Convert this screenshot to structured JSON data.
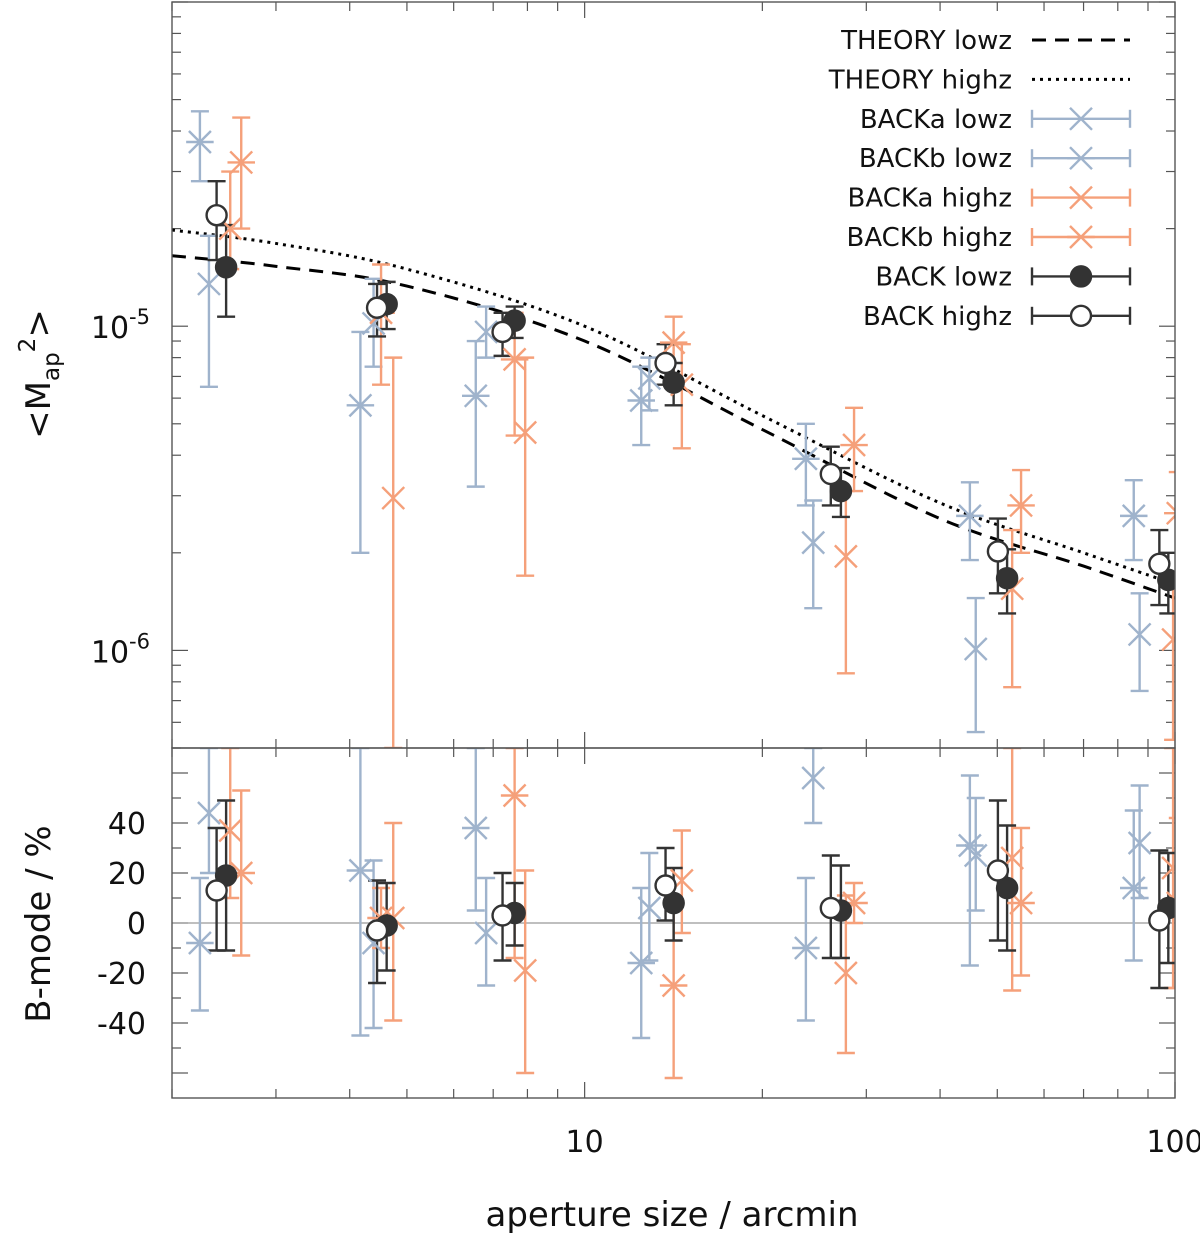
{
  "chart_data": [
    {
      "type": "scatter",
      "panel": "top",
      "title": "",
      "xlabel": "aperture size / arcmin",
      "ylabel_parts": [
        "<M",
        "ap",
        "2",
        ">"
      ],
      "xscale": "log",
      "yscale": "log",
      "xlim": [
        2,
        100
      ],
      "ylim": [
        5e-07,
        0.0001
      ],
      "yticks": [
        {
          "value": 1e-05,
          "mantissa": "10",
          "exponent": "-5"
        },
        {
          "value": 1e-06,
          "mantissa": "10",
          "exponent": "-6"
        }
      ],
      "legend_position": "top-right",
      "lines": [
        {
          "name": "THEORY lowz",
          "style": "dashed",
          "color": "#000000",
          "x": [
            2,
            3,
            5,
            10,
            20,
            40,
            70,
            100
          ],
          "y": [
            1.65e-05,
            1.53e-05,
            1.33e-05,
            9e-06,
            4.8e-06,
            2.55e-06,
            1.82e-06,
            1.45e-06
          ]
        },
        {
          "name": "THEORY highz",
          "style": "dotted",
          "color": "#000000",
          "x": [
            2,
            3,
            5,
            10,
            20,
            40,
            70,
            100
          ],
          "y": [
            1.98e-05,
            1.8e-05,
            1.5e-05,
            1e-05,
            5.3e-06,
            2.85e-06,
            2e-06,
            1.6e-06
          ]
        }
      ],
      "series": [
        {
          "name": "BACKa lowz",
          "marker": "x",
          "color": "#9fb3cc",
          "points": [
            {
              "x": 2.31,
              "y": 1.35e-05,
              "lo": 6.5e-06,
              "hi": 1.9e-05
            },
            {
              "x": 4.39,
              "y": 1.02e-05,
              "lo": 7.5e-06,
              "hi": 1.4e-05
            },
            {
              "x": 6.81,
              "y": 9.6e-06,
              "lo": 8e-06,
              "hi": 1.15e-05
            },
            {
              "x": 12.87,
              "y": 6.9e-06,
              "lo": 5.5e-06,
              "hi": 8e-06
            },
            {
              "x": 24.39,
              "y": 2.15e-06,
              "lo": 1.35e-06,
              "hi": 2.9e-06
            },
            {
              "x": 45.97,
              "y": 1.01e-06,
              "lo": 5.6e-07,
              "hi": 1.45e-06
            },
            {
              "x": 87.11,
              "y": 1.12e-06,
              "lo": 7.5e-07,
              "hi": 1.5e-06
            }
          ]
        },
        {
          "name": "BACKb lowz",
          "marker": "star",
          "color": "#9fb3cc",
          "points": [
            {
              "x": 2.23,
              "y": 3.7e-05,
              "lo": 2.8e-05,
              "hi": 4.6e-05
            },
            {
              "x": 4.17,
              "y": 5.7e-06,
              "lo": 2e-06,
              "hi": 9.6e-06
            },
            {
              "x": 6.54,
              "y": 6.1e-06,
              "lo": 3.2e-06,
              "hi": 9e-06
            },
            {
              "x": 12.47,
              "y": 5.9e-06,
              "lo": 4.3e-06,
              "hi": 7.5e-06
            },
            {
              "x": 23.7,
              "y": 3.9e-06,
              "lo": 2.8e-06,
              "hi": 5e-06
            },
            {
              "x": 44.93,
              "y": 2.6e-06,
              "lo": 1.9e-06,
              "hi": 3.3e-06
            },
            {
              "x": 85.14,
              "y": 2.6e-06,
              "lo": 1.9e-06,
              "hi": 3.35e-06
            }
          ]
        },
        {
          "name": "BACKa highz",
          "marker": "x",
          "color": "#f5a07a",
          "points": [
            {
              "x": 2.51,
              "y": 2e-05,
              "lo": 1.5e-05,
              "hi": 3e-05
            },
            {
              "x": 4.74,
              "y": 2.95e-06,
              "lo": 3e-07,
              "hi": 8e-06
            },
            {
              "x": 7.93,
              "y": 4.7e-06,
              "lo": 1.7e-06,
              "hi": 8e-06
            },
            {
              "x": 14.61,
              "y": 6.6e-06,
              "lo": 4.2e-06,
              "hi": 8.8e-06
            },
            {
              "x": 27.7,
              "y": 1.95e-06,
              "lo": 8.5e-07,
              "hi": 3.1e-06
            },
            {
              "x": 52.99,
              "y": 1.55e-06,
              "lo": 7.7e-07,
              "hi": 2.35e-06
            },
            {
              "x": 99.26,
              "y": 1.08e-06,
              "lo": 5.3e-07,
              "hi": 1.65e-06
            }
          ]
        },
        {
          "name": "BACKb highz",
          "marker": "star",
          "color": "#f5a07a",
          "points": [
            {
              "x": 2.62,
              "y": 3.2e-05,
              "lo": 2e-05,
              "hi": 4.4e-05
            },
            {
              "x": 4.52,
              "y": 1.1e-05,
              "lo": 6.6e-06,
              "hi": 1.55e-05
            },
            {
              "x": 7.61,
              "y": 7.9e-06,
              "lo": 4.6e-06,
              "hi": 1.1e-05
            },
            {
              "x": 14.15,
              "y": 8.9e-06,
              "lo": 7e-06,
              "hi": 1.07e-05
            },
            {
              "x": 28.6,
              "y": 4.3e-06,
              "lo": 3.1e-06,
              "hi": 5.6e-06
            },
            {
              "x": 54.86,
              "y": 2.8e-06,
              "lo": 2e-06,
              "hi": 3.6e-06
            },
            {
              "x": 101.1,
              "y": 2.65e-06,
              "lo": 1.7e-06,
              "hi": 3.55e-06
            }
          ]
        },
        {
          "name": "BACK lowz",
          "marker": "filled-circle",
          "color": "#333333",
          "points": [
            {
              "x": 2.47,
              "y": 1.52e-05,
              "lo": 1.07e-05,
              "hi": 2.05e-05
            },
            {
              "x": 4.62,
              "y": 1.17e-05,
              "lo": 9.8e-06,
              "hi": 1.37e-05
            },
            {
              "x": 7.61,
              "y": 1.04e-05,
              "lo": 9.2e-06,
              "hi": 1.15e-05
            },
            {
              "x": 14.15,
              "y": 6.7e-06,
              "lo": 5.7e-06,
              "hi": 7.7e-06
            },
            {
              "x": 27.17,
              "y": 3.1e-06,
              "lo": 2.58e-06,
              "hi": 3.65e-06
            },
            {
              "x": 51.95,
              "y": 1.67e-06,
              "lo": 1.3e-06,
              "hi": 2.05e-06
            },
            {
              "x": 97.43,
              "y": 1.65e-06,
              "lo": 1.3e-06,
              "hi": 2e-06
            }
          ]
        },
        {
          "name": "BACK highz",
          "marker": "open-circle",
          "color": "#333333",
          "points": [
            {
              "x": 2.38,
              "y": 2.2e-05,
              "lo": 1.6e-05,
              "hi": 2.8e-05
            },
            {
              "x": 4.45,
              "y": 1.14e-05,
              "lo": 9.3e-06,
              "hi": 1.35e-05
            },
            {
              "x": 7.26,
              "y": 9.6e-06,
              "lo": 8.1e-06,
              "hi": 1.1e-05
            },
            {
              "x": 13.71,
              "y": 7.7e-06,
              "lo": 6.6e-06,
              "hi": 8.8e-06
            },
            {
              "x": 26.12,
              "y": 3.5e-06,
              "lo": 2.8e-06,
              "hi": 4.25e-06
            },
            {
              "x": 50.12,
              "y": 2.02e-06,
              "lo": 1.5e-06,
              "hi": 2.55e-06
            },
            {
              "x": 94.08,
              "y": 1.85e-06,
              "lo": 1.38e-06,
              "hi": 2.35e-06
            }
          ]
        }
      ]
    },
    {
      "type": "scatter",
      "panel": "bottom",
      "title": "",
      "xlabel": "aperture size / arcmin",
      "ylabel": "B-mode / %",
      "xscale": "log",
      "yscale": "linear",
      "xlim": [
        2,
        100
      ],
      "ylim": [
        -70,
        70
      ],
      "xticks": [
        {
          "value": 10,
          "label": "10"
        },
        {
          "value": 100,
          "label": "100"
        }
      ],
      "yticks": [
        40,
        20,
        0,
        -20,
        -40
      ],
      "ytick_labels": [
        "40",
        "20",
        "0",
        "-20",
        "-40"
      ],
      "zero_line": true,
      "series": [
        {
          "name": "BACKa lowz",
          "marker": "x",
          "color": "#9fb3cc",
          "points": [
            {
              "x": 2.31,
              "y": 44,
              "lo": 20,
              "hi": 70
            },
            {
              "x": 4.39,
              "y": -8,
              "lo": -42,
              "hi": 25
            },
            {
              "x": 6.81,
              "y": -4,
              "lo": -25,
              "hi": 18
            },
            {
              "x": 12.87,
              "y": 6,
              "lo": -15,
              "hi": 28
            },
            {
              "x": 24.39,
              "y": 58,
              "lo": 40,
              "hi": 70
            },
            {
              "x": 45.97,
              "y": 27,
              "lo": 5,
              "hi": 50
            },
            {
              "x": 87.11,
              "y": 32,
              "lo": 10,
              "hi": 55
            }
          ]
        },
        {
          "name": "BACKb lowz",
          "marker": "star",
          "color": "#9fb3cc",
          "points": [
            {
              "x": 2.23,
              "y": -8,
              "lo": -35,
              "hi": 18
            },
            {
              "x": 4.17,
              "y": 21,
              "lo": -45,
              "hi": 70
            },
            {
              "x": 6.54,
              "y": 38,
              "lo": 5,
              "hi": 70
            },
            {
              "x": 12.47,
              "y": -16,
              "lo": -46,
              "hi": 14
            },
            {
              "x": 23.7,
              "y": -10,
              "lo": -39,
              "hi": 18
            },
            {
              "x": 44.93,
              "y": 31,
              "lo": -17,
              "hi": 59
            },
            {
              "x": 85.14,
              "y": 14,
              "lo": -15,
              "hi": 45
            }
          ]
        },
        {
          "name": "BACKa highz",
          "marker": "x",
          "color": "#f5a07a",
          "points": [
            {
              "x": 2.51,
              "y": 37,
              "lo": 10,
              "hi": 70
            },
            {
              "x": 4.74,
              "y": 2,
              "lo": -39,
              "hi": 40
            },
            {
              "x": 7.93,
              "y": -19,
              "lo": -60,
              "hi": 21
            },
            {
              "x": 14.61,
              "y": 17,
              "lo": -4,
              "hi": 37
            },
            {
              "x": 27.7,
              "y": -20,
              "lo": -52,
              "hi": 11
            },
            {
              "x": 52.99,
              "y": 26,
              "lo": -27,
              "hi": 70
            },
            {
              "x": 99.26,
              "y": 22,
              "lo": -26,
              "hi": 70
            }
          ]
        },
        {
          "name": "BACKb highz",
          "marker": "star",
          "color": "#f5a07a",
          "points": [
            {
              "x": 2.62,
              "y": 20,
              "lo": -13,
              "hi": 53
            },
            {
              "x": 4.52,
              "y": 2,
              "lo": -10,
              "hi": 14
            },
            {
              "x": 7.61,
              "y": 51,
              "lo": -14,
              "hi": 70
            },
            {
              "x": 14.15,
              "y": -25,
              "lo": -62,
              "hi": 11
            },
            {
              "x": 28.6,
              "y": 8,
              "lo": 0,
              "hi": 16
            },
            {
              "x": 54.86,
              "y": 8,
              "lo": -21,
              "hi": 38
            },
            {
              "x": 101.1,
              "y": 8,
              "lo": -26,
              "hi": 42
            }
          ]
        },
        {
          "name": "BACK lowz",
          "marker": "filled-circle",
          "color": "#333333",
          "points": [
            {
              "x": 2.47,
              "y": 19,
              "lo": -11,
              "hi": 49
            },
            {
              "x": 4.62,
              "y": -1,
              "lo": -19,
              "hi": 16
            },
            {
              "x": 7.61,
              "y": 4,
              "lo": -9,
              "hi": 16
            },
            {
              "x": 14.15,
              "y": 8,
              "lo": -7,
              "hi": 22
            },
            {
              "x": 27.17,
              "y": 5,
              "lo": -14,
              "hi": 23
            },
            {
              "x": 51.95,
              "y": 14,
              "lo": -11,
              "hi": 39
            },
            {
              "x": 97.43,
              "y": 6,
              "lo": -16,
              "hi": 28
            }
          ]
        },
        {
          "name": "BACK highz",
          "marker": "open-circle",
          "color": "#333333",
          "points": [
            {
              "x": 2.38,
              "y": 13,
              "lo": -11,
              "hi": 38
            },
            {
              "x": 4.45,
              "y": -3,
              "lo": -24,
              "hi": 17
            },
            {
              "x": 7.26,
              "y": 3,
              "lo": -15,
              "hi": 20
            },
            {
              "x": 13.71,
              "y": 15,
              "lo": 1,
              "hi": 30
            },
            {
              "x": 26.12,
              "y": 6,
              "lo": -14,
              "hi": 27
            },
            {
              "x": 50.12,
              "y": 21,
              "lo": -7,
              "hi": 49
            },
            {
              "x": 94.08,
              "y": 1,
              "lo": -26,
              "hi": 29
            }
          ]
        }
      ]
    }
  ]
}
